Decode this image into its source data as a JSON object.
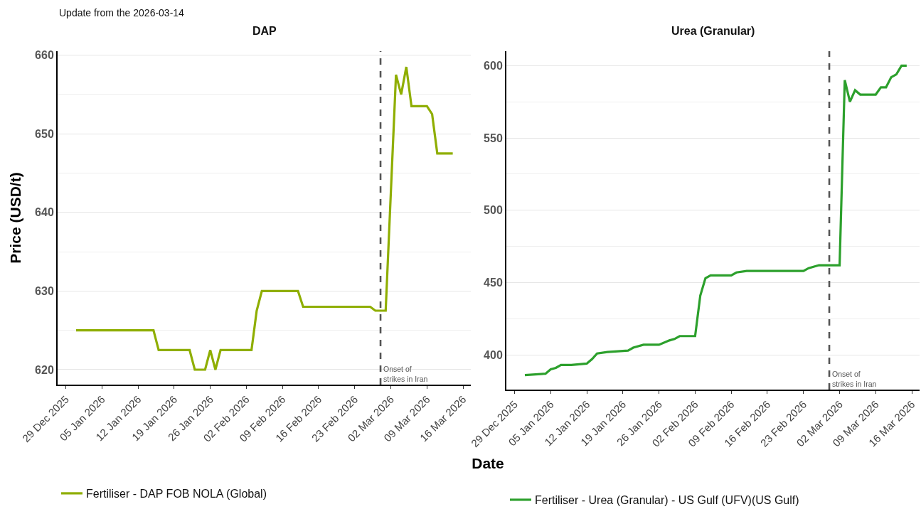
{
  "chart_data": [
    {
      "type": "line",
      "title": "DAP",
      "subtitle": "Update from the 2026-03-14",
      "xlabel": "Date",
      "ylabel": "Price (USD/t)",
      "series": [
        {
          "name": "Fertiliser - DAP FOB NOLA (Global)",
          "color": "#8fae00",
          "x": [
            "2025-12-31",
            "2026-01-15",
            "2026-01-16",
            "2026-01-22",
            "2026-01-23",
            "2026-01-25",
            "2026-01-26",
            "2026-01-27",
            "2026-01-28",
            "2026-02-03",
            "2026-02-04",
            "2026-02-05",
            "2026-02-12",
            "2026-02-13",
            "2026-02-26",
            "2026-02-27",
            "2026-03-01",
            "2026-03-03",
            "2026-03-04",
            "2026-03-05",
            "2026-03-06",
            "2026-03-09",
            "2026-03-10",
            "2026-03-11",
            "2026-03-14"
          ],
          "values": [
            625,
            625,
            622.5,
            622.5,
            620,
            620,
            622.5,
            620,
            622.5,
            622.5,
            627.5,
            630,
            630,
            628,
            628,
            627.5,
            627.5,
            657.5,
            655,
            658.5,
            653.5,
            653.5,
            652.5,
            647.5,
            647.5
          ]
        }
      ],
      "xlim": [
        "2025-12-27T10:00",
        "2026-03-17T12:00"
      ],
      "xticks": [
        {
          "value": "2025-12-29",
          "label": "29 Dec 2025"
        },
        {
          "value": "2026-01-05",
          "label": "05 Jan 2026"
        },
        {
          "value": "2026-01-12",
          "label": "12 Jan 2026"
        },
        {
          "value": "2026-01-19",
          "label": "19 Jan 2026"
        },
        {
          "value": "2026-01-26",
          "label": "26 Jan 2026"
        },
        {
          "value": "2026-02-02",
          "label": "02 Feb 2026"
        },
        {
          "value": "2026-02-09",
          "label": "09 Feb 2026"
        },
        {
          "value": "2026-02-16",
          "label": "16 Feb 2026"
        },
        {
          "value": "2026-02-23",
          "label": "23 Feb 2026"
        },
        {
          "value": "2026-03-02",
          "label": "02 Mar 2026"
        },
        {
          "value": "2026-03-09",
          "label": "09 Mar 2026"
        },
        {
          "value": "2026-03-16",
          "label": "16 Mar 2026"
        }
      ],
      "ylim": [
        618.1,
        660.5
      ],
      "yticks": [
        620,
        630,
        640,
        650,
        660
      ],
      "grid": "y",
      "legend": "bottom",
      "ref_lines": [
        {
          "axis": "x",
          "value": "2026-02-28",
          "label": "Onset of\nstrikes in Iran",
          "color": "#555555",
          "line_style": "dashed"
        }
      ]
    },
    {
      "type": "line",
      "title": "Urea (Granular)",
      "series": [
        {
          "name": "Fertiliser - Urea (Granular) - US Gulf (UFV)(US Gulf)",
          "color": "#2ca02c",
          "x": [
            "2025-12-31",
            "2026-01-04",
            "2026-01-05",
            "2026-01-06",
            "2026-01-07",
            "2026-01-09",
            "2026-01-12",
            "2026-01-13",
            "2026-01-14",
            "2026-01-16",
            "2026-01-20",
            "2026-01-21",
            "2026-01-23",
            "2026-01-26",
            "2026-01-28",
            "2026-01-29",
            "2026-01-30",
            "2026-02-02",
            "2026-02-03",
            "2026-02-04",
            "2026-02-05",
            "2026-02-09",
            "2026-02-10",
            "2026-02-12",
            "2026-02-17",
            "2026-02-23",
            "2026-02-24",
            "2026-02-26",
            "2026-02-27",
            "2026-03-02",
            "2026-03-03",
            "2026-03-04",
            "2026-03-05",
            "2026-03-06",
            "2026-03-09",
            "2026-03-10",
            "2026-03-11",
            "2026-03-12",
            "2026-03-13",
            "2026-03-14",
            "2026-03-15"
          ],
          "values": [
            386,
            387,
            390,
            391,
            393,
            393,
            394,
            397,
            401,
            402,
            403,
            405,
            407,
            407,
            410,
            411,
            413,
            413,
            441,
            453,
            455,
            455,
            457,
            458,
            458,
            458,
            460,
            462,
            462,
            462,
            590,
            575,
            583,
            580,
            580,
            585,
            585,
            592,
            594,
            600,
            600
          ]
        }
      ],
      "xlim": [
        "2025-12-27T10:00",
        "2026-03-17T12:00"
      ],
      "xticks": [
        {
          "value": "2025-12-29",
          "label": "29 Dec 2025"
        },
        {
          "value": "2026-01-05",
          "label": "05 Jan 2026"
        },
        {
          "value": "2026-01-12",
          "label": "12 Jan 2026"
        },
        {
          "value": "2026-01-19",
          "label": "19 Jan 2026"
        },
        {
          "value": "2026-01-26",
          "label": "26 Jan 2026"
        },
        {
          "value": "2026-02-02",
          "label": "02 Feb 2026"
        },
        {
          "value": "2026-02-09",
          "label": "09 Feb 2026"
        },
        {
          "value": "2026-02-16",
          "label": "16 Feb 2026"
        },
        {
          "value": "2026-02-23",
          "label": "23 Feb 2026"
        },
        {
          "value": "2026-03-02",
          "label": "02 Mar 2026"
        },
        {
          "value": "2026-03-09",
          "label": "09 Mar 2026"
        },
        {
          "value": "2026-03-16",
          "label": "16 Mar 2026"
        }
      ],
      "ylim": [
        376,
        610
      ],
      "yticks": [
        400,
        450,
        500,
        550,
        600
      ],
      "grid": "y",
      "legend": "bottom",
      "ref_lines": [
        {
          "axis": "x",
          "value": "2026-02-28",
          "label": "Onset of\nstrikes in Iran",
          "color": "#555555",
          "line_style": "dashed"
        }
      ]
    }
  ]
}
